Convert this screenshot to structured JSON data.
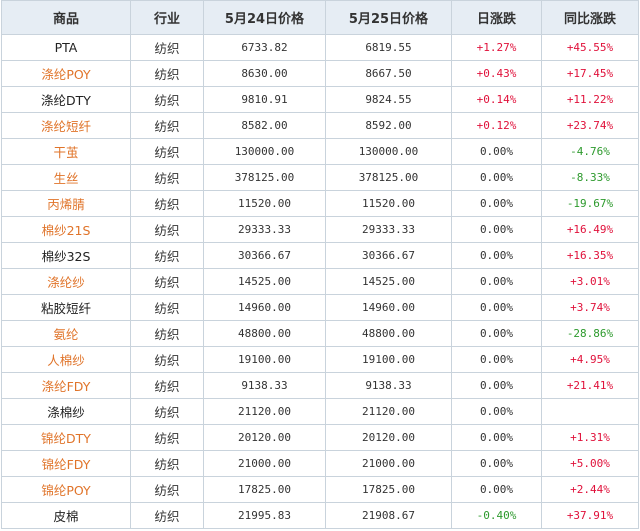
{
  "table": {
    "headers": [
      "商品",
      "行业",
      "5月24日价格",
      "5月25日价格",
      "日涨跌",
      "同比涨跌"
    ],
    "rows": [
      {
        "name": "PTA",
        "name_color": "black",
        "industry": "纺织",
        "price_0524": "6733.82",
        "price_0525": "6819.55",
        "daily": "+1.27%",
        "daily_dir": "up",
        "yoy": "+45.55%",
        "yoy_dir": "up"
      },
      {
        "name": "涤纶POY",
        "name_color": "orange",
        "industry": "纺织",
        "price_0524": "8630.00",
        "price_0525": "8667.50",
        "daily": "+0.43%",
        "daily_dir": "up",
        "yoy": "+17.45%",
        "yoy_dir": "up"
      },
      {
        "name": "涤纶DTY",
        "name_color": "black",
        "industry": "纺织",
        "price_0524": "9810.91",
        "price_0525": "9824.55",
        "daily": "+0.14%",
        "daily_dir": "up",
        "yoy": "+11.22%",
        "yoy_dir": "up"
      },
      {
        "name": "涤纶短纤",
        "name_color": "orange",
        "industry": "纺织",
        "price_0524": "8582.00",
        "price_0525": "8592.00",
        "daily": "+0.12%",
        "daily_dir": "up",
        "yoy": "+23.74%",
        "yoy_dir": "up"
      },
      {
        "name": "干茧",
        "name_color": "orange",
        "industry": "纺织",
        "price_0524": "130000.00",
        "price_0525": "130000.00",
        "daily": "0.00%",
        "daily_dir": "flat",
        "yoy": "-4.76%",
        "yoy_dir": "down"
      },
      {
        "name": "生丝",
        "name_color": "orange",
        "industry": "纺织",
        "price_0524": "378125.00",
        "price_0525": "378125.00",
        "daily": "0.00%",
        "daily_dir": "flat",
        "yoy": "-8.33%",
        "yoy_dir": "down"
      },
      {
        "name": "丙烯腈",
        "name_color": "orange",
        "industry": "纺织",
        "price_0524": "11520.00",
        "price_0525": "11520.00",
        "daily": "0.00%",
        "daily_dir": "flat",
        "yoy": "-19.67%",
        "yoy_dir": "down"
      },
      {
        "name": "棉纱21S",
        "name_color": "orange",
        "industry": "纺织",
        "price_0524": "29333.33",
        "price_0525": "29333.33",
        "daily": "0.00%",
        "daily_dir": "flat",
        "yoy": "+16.49%",
        "yoy_dir": "up"
      },
      {
        "name": "棉纱32S",
        "name_color": "black",
        "industry": "纺织",
        "price_0524": "30366.67",
        "price_0525": "30366.67",
        "daily": "0.00%",
        "daily_dir": "flat",
        "yoy": "+16.35%",
        "yoy_dir": "up"
      },
      {
        "name": "涤纶纱",
        "name_color": "orange",
        "industry": "纺织",
        "price_0524": "14525.00",
        "price_0525": "14525.00",
        "daily": "0.00%",
        "daily_dir": "flat",
        "yoy": "+3.01%",
        "yoy_dir": "up"
      },
      {
        "name": "粘胶短纤",
        "name_color": "black",
        "industry": "纺织",
        "price_0524": "14960.00",
        "price_0525": "14960.00",
        "daily": "0.00%",
        "daily_dir": "flat",
        "yoy": "+3.74%",
        "yoy_dir": "up"
      },
      {
        "name": "氨纶",
        "name_color": "orange",
        "industry": "纺织",
        "price_0524": "48800.00",
        "price_0525": "48800.00",
        "daily": "0.00%",
        "daily_dir": "flat",
        "yoy": "-28.86%",
        "yoy_dir": "down"
      },
      {
        "name": "人棉纱",
        "name_color": "orange",
        "industry": "纺织",
        "price_0524": "19100.00",
        "price_0525": "19100.00",
        "daily": "0.00%",
        "daily_dir": "flat",
        "yoy": "+4.95%",
        "yoy_dir": "up"
      },
      {
        "name": "涤纶FDY",
        "name_color": "orange",
        "industry": "纺织",
        "price_0524": "9138.33",
        "price_0525": "9138.33",
        "daily": "0.00%",
        "daily_dir": "flat",
        "yoy": "+21.41%",
        "yoy_dir": "up"
      },
      {
        "name": "涤棉纱",
        "name_color": "black",
        "industry": "纺织",
        "price_0524": "21120.00",
        "price_0525": "21120.00",
        "daily": "0.00%",
        "daily_dir": "flat",
        "yoy": "",
        "yoy_dir": "flat"
      },
      {
        "name": "锦纶DTY",
        "name_color": "orange",
        "industry": "纺织",
        "price_0524": "20120.00",
        "price_0525": "20120.00",
        "daily": "0.00%",
        "daily_dir": "flat",
        "yoy": "+1.31%",
        "yoy_dir": "up"
      },
      {
        "name": "锦纶FDY",
        "name_color": "orange",
        "industry": "纺织",
        "price_0524": "21000.00",
        "price_0525": "21000.00",
        "daily": "0.00%",
        "daily_dir": "flat",
        "yoy": "+5.00%",
        "yoy_dir": "up"
      },
      {
        "name": "锦纶POY",
        "name_color": "orange",
        "industry": "纺织",
        "price_0524": "17825.00",
        "price_0525": "17825.00",
        "daily": "0.00%",
        "daily_dir": "flat",
        "yoy": "+2.44%",
        "yoy_dir": "up"
      },
      {
        "name": "皮棉",
        "name_color": "black",
        "industry": "纺织",
        "price_0524": "21995.83",
        "price_0525": "21908.67",
        "daily": "-0.40%",
        "daily_dir": "down",
        "yoy": "+37.91%",
        "yoy_dir": "up"
      }
    ]
  },
  "colors": {
    "header_bg": "#e6edf4",
    "border": "#c9d3dc",
    "link_orange": "#e0742a",
    "up_red": "#e0103a",
    "down_green": "#2d9a2d"
  }
}
